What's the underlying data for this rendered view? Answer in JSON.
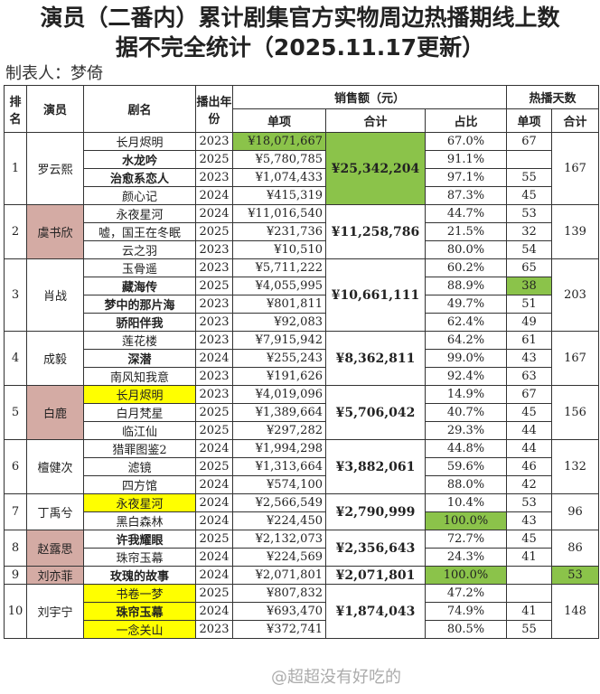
{
  "title_line1": "演员（二番内）累计剧集官方实物周边热播期线上数",
  "title_line2": "据不完全统计（2025.11.17更新）",
  "maker": "制表人：梦倚",
  "headers": {
    "rank": "排名",
    "actor": "演员",
    "drama": "剧名",
    "year": "播出年份",
    "sales": "销售额（元）",
    "unit": "单项",
    "total": "合计",
    "pct": "占比",
    "days": "热播天数",
    "days_unit": "单项",
    "days_total": "合计"
  },
  "colors": {
    "green": "#8bc34a",
    "yellow": "#ffff00",
    "pink": "#d4aba4"
  },
  "groups": [
    {
      "rank": "1",
      "actor": "罗云熙",
      "total": "¥25,342,204",
      "total_green": true,
      "days_total": "167",
      "rows": [
        {
          "title": "长月烬明",
          "year": "2023",
          "unit": "¥18,071,667",
          "unit_green": true,
          "pct": "67.0%",
          "days": "67"
        },
        {
          "title": "水龙吟",
          "bold": true,
          "year": "2025",
          "unit": "¥5,780,785",
          "pct": "91.1%",
          "days": ""
        },
        {
          "title": "治愈系恋人",
          "bold": true,
          "year": "2023",
          "unit": "¥1,074,433",
          "pct": "97.1%",
          "days": "55"
        },
        {
          "title": "颜心记",
          "year": "2024",
          "unit": "¥415,319",
          "pct": "87.3%",
          "days": "45"
        }
      ]
    },
    {
      "rank": "2",
      "actor": "虞书欣",
      "actor_pink": true,
      "total": "¥11,258,786",
      "days_total": "139",
      "rows": [
        {
          "title": "永夜星河",
          "year": "2024",
          "unit": "¥11,016,540",
          "pct": "44.7%",
          "days": "53"
        },
        {
          "title": "嘘，国王在冬眠",
          "year": "2025",
          "unit": "¥231,736",
          "pct": "21.5%",
          "days": "32"
        },
        {
          "title": "云之羽",
          "year": "2023",
          "unit": "¥10,510",
          "pct": "80.0%",
          "days": "54"
        }
      ]
    },
    {
      "rank": "3",
      "actor": "肖战",
      "total": "¥10,661,111",
      "days_total": "203",
      "rows": [
        {
          "title": "玉骨遥",
          "year": "2023",
          "unit": "¥5,711,222",
          "pct": "60.2%",
          "days": "65"
        },
        {
          "title": "藏海传",
          "bold": true,
          "year": "2025",
          "unit": "¥4,055,995",
          "pct": "88.9%",
          "days": "38",
          "days_green": true
        },
        {
          "title": "梦中的那片海",
          "bold": true,
          "year": "2023",
          "unit": "¥801,811",
          "pct": "49.7%",
          "days": "51"
        },
        {
          "title": "骄阳伴我",
          "bold": true,
          "year": "2023",
          "unit": "¥92,083",
          "pct": "62.4%",
          "days": "49"
        }
      ]
    },
    {
      "rank": "4",
      "actor": "成毅",
      "total": "¥8,362,811",
      "days_total": "167",
      "rows": [
        {
          "title": "莲花楼",
          "year": "2023",
          "unit": "¥7,915,942",
          "pct": "64.2%",
          "days": "61"
        },
        {
          "title": "深潜",
          "bold": true,
          "year": "2024",
          "unit": "¥255,243",
          "pct": "99.0%",
          "days": "43"
        },
        {
          "title": "南风知我意",
          "year": "2023",
          "unit": "¥191,626",
          "pct": "92.4%",
          "days": "63"
        }
      ]
    },
    {
      "rank": "5",
      "actor": "白鹿",
      "actor_pink": true,
      "total": "¥5,706,042",
      "days_total": "156",
      "rows": [
        {
          "title": "长月烬明",
          "title_yellow": true,
          "year": "2023",
          "unit": "¥4,019,096",
          "pct": "14.9%",
          "days": "67"
        },
        {
          "title": "白月梵星",
          "year": "2025",
          "unit": "¥1,389,664",
          "pct": "40.7%",
          "days": "45"
        },
        {
          "title": "临江仙",
          "year": "2025",
          "unit": "¥297,282",
          "pct": "29.3%",
          "days": "44"
        }
      ]
    },
    {
      "rank": "6",
      "actor": "檀健次",
      "total": "¥3,882,061",
      "days_total": "132",
      "rows": [
        {
          "title": "猎罪图鉴2",
          "year": "2024",
          "unit": "¥1,994,298",
          "pct": "44.8%",
          "days": "44"
        },
        {
          "title": "滤镜",
          "year": "2025",
          "unit": "¥1,313,664",
          "pct": "59.6%",
          "days": "46"
        },
        {
          "title": "四方馆",
          "year": "2024",
          "unit": "¥574,100",
          "pct": "88.0%",
          "days": "42"
        }
      ]
    },
    {
      "rank": "7",
      "actor": "丁禹兮",
      "total": "¥2,790,999",
      "days_total": "96",
      "rows": [
        {
          "title": "永夜星河",
          "title_yellow": true,
          "year": "2024",
          "unit": "¥2,566,549",
          "pct": "10.4%",
          "days": "53"
        },
        {
          "title": "黑白森林",
          "year": "2024",
          "unit": "¥224,450",
          "pct": "100.0%",
          "pct_green": true,
          "days": "43"
        }
      ]
    },
    {
      "rank": "8",
      "actor": "赵露思",
      "actor_pink": true,
      "total": "¥2,356,643",
      "days_total": "86",
      "rows": [
        {
          "title": "许我耀眼",
          "bold": true,
          "year": "2025",
          "unit": "¥2,132,073",
          "pct": "72.7%",
          "days": "45"
        },
        {
          "title": "珠帘玉幕",
          "year": "2024",
          "unit": "¥224,569",
          "pct": "24.3%",
          "days": "41"
        }
      ]
    },
    {
      "rank": "9",
      "actor": "刘亦菲",
      "actor_pink": true,
      "total": "¥2,071,801",
      "days_total": "53",
      "days_total_green": true,
      "rows": [
        {
          "title": "玫瑰的故事",
          "bold": true,
          "year": "2024",
          "unit": "¥2,071,801",
          "pct": "100.0%",
          "pct_green": true,
          "days": ""
        }
      ]
    },
    {
      "rank": "10",
      "actor": "刘宇宁",
      "total": "¥1,874,043",
      "days_total": "148",
      "rows": [
        {
          "title": "书卷一梦",
          "title_yellow": true,
          "year": "2025",
          "unit": "¥807,832",
          "pct": "47.2%",
          "days": ""
        },
        {
          "title": "珠帘玉幕",
          "title_yellow": true,
          "bold": true,
          "year": "2024",
          "unit": "¥693,470",
          "pct": "74.9%",
          "days": "41"
        },
        {
          "title": "一念关山",
          "title_yellow": true,
          "year": "2023",
          "unit": "¥372,741",
          "pct": "80.5%",
          "days": "55"
        }
      ]
    }
  ],
  "watermark": "@超超没有好吃的"
}
